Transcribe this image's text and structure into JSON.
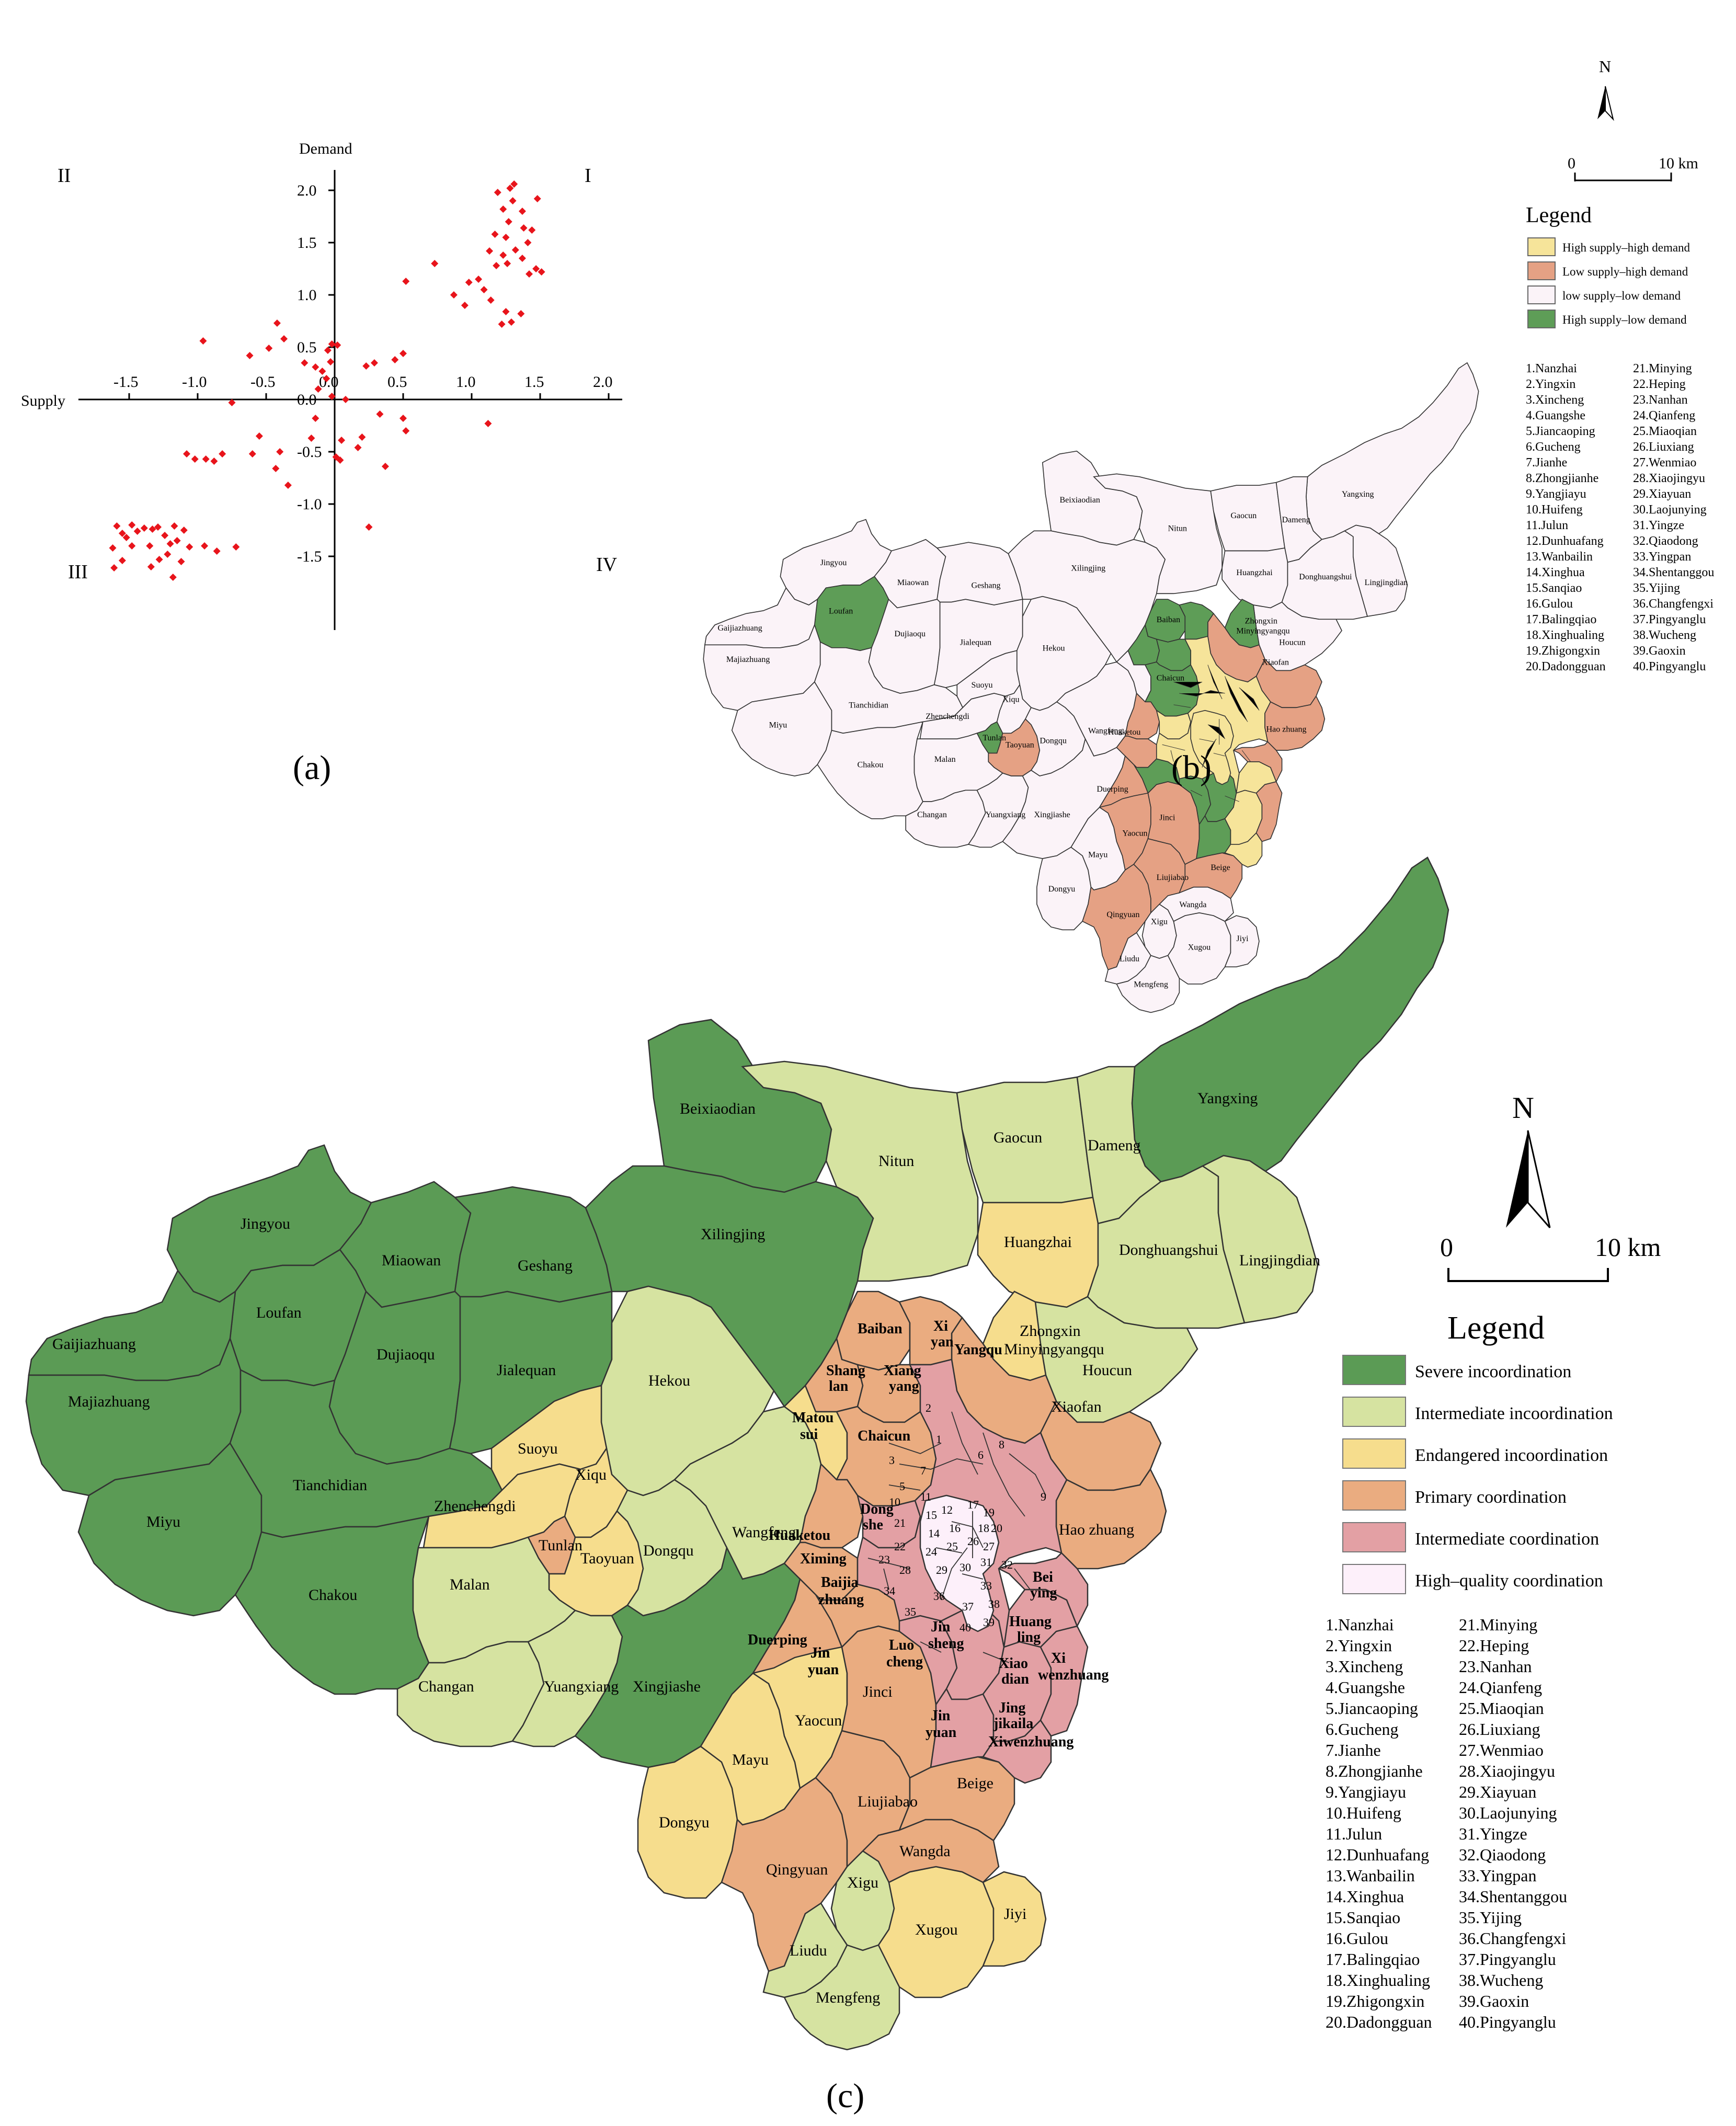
{
  "panels": {
    "a": "(a)",
    "b": "(b)",
    "c": "(c)"
  },
  "chart_data": {
    "type": "scatter",
    "xlabel": "Supply",
    "ylabel": "Demand",
    "xlim": [
      -1.8,
      2.1
    ],
    "ylim": [
      -1.9,
      2.3
    ],
    "xticks": [
      "-1.5",
      "-1.0",
      "-0.5",
      "0.0",
      "0.5",
      "1.0",
      "1.5",
      "2.0"
    ],
    "yticks": [
      "2.0",
      "1.5",
      "1.0",
      "0.5",
      "0.0",
      "-0.5",
      "-1.0",
      "-1.5"
    ],
    "quadrants": {
      "I": "I",
      "II": "II",
      "III": "III",
      "IV": "IV"
    },
    "points": [
      [
        1.28,
        2.02
      ],
      [
        1.31,
        2.06
      ],
      [
        1.48,
        1.92
      ],
      [
        1.19,
        1.98
      ],
      [
        1.3,
        1.9
      ],
      [
        1.37,
        1.8
      ],
      [
        1.23,
        1.82
      ],
      [
        1.27,
        1.7
      ],
      [
        1.38,
        1.64
      ],
      [
        1.44,
        1.62
      ],
      [
        1.17,
        1.58
      ],
      [
        1.25,
        1.55
      ],
      [
        1.41,
        1.5
      ],
      [
        1.32,
        1.43
      ],
      [
        1.13,
        1.42
      ],
      [
        1.23,
        1.38
      ],
      [
        1.37,
        1.35
      ],
      [
        1.26,
        1.3
      ],
      [
        1.18,
        1.28
      ],
      [
        1.47,
        1.25
      ],
      [
        1.51,
        1.22
      ],
      [
        1.42,
        1.2
      ],
      [
        1.05,
        1.15
      ],
      [
        0.98,
        1.12
      ],
      [
        1.09,
        1.05
      ],
      [
        0.87,
        1.0
      ],
      [
        1.14,
        0.95
      ],
      [
        0.95,
        0.9
      ],
      [
        1.25,
        0.84
      ],
      [
        1.36,
        0.82
      ],
      [
        1.22,
        0.72
      ],
      [
        1.29,
        0.74
      ],
      [
        0.73,
        1.3
      ],
      [
        0.52,
        1.13
      ],
      [
        0.5,
        0.44
      ],
      [
        0.44,
        0.38
      ],
      [
        0.29,
        0.35
      ],
      [
        0.23,
        0.32
      ],
      [
        -0.02,
        0.53
      ],
      [
        0.02,
        0.52
      ],
      [
        -0.05,
        0.47
      ],
      [
        -0.03,
        0.36
      ],
      [
        -0.09,
        0.27
      ],
      [
        -0.06,
        0.2
      ],
      [
        -0.22,
        0.35
      ],
      [
        -0.14,
        0.31
      ],
      [
        -0.12,
        0.1
      ],
      [
        -0.02,
        0.03
      ],
      [
        0.08,
        0.0
      ],
      [
        -0.42,
        0.73
      ],
      [
        -0.37,
        0.58
      ],
      [
        -0.48,
        0.49
      ],
      [
        -0.62,
        0.42
      ],
      [
        -0.96,
        0.56
      ],
      [
        -0.75,
        -0.03
      ],
      [
        -0.14,
        -0.18
      ],
      [
        -0.17,
        -0.37
      ],
      [
        0.05,
        -0.39
      ],
      [
        0.33,
        -0.14
      ],
      [
        0.5,
        -0.18
      ],
      [
        0.52,
        -0.3
      ],
      [
        0.2,
        -0.36
      ],
      [
        0.17,
        -0.46
      ],
      [
        0.01,
        -0.55
      ],
      [
        0.04,
        -0.58
      ],
      [
        0.37,
        -0.64
      ],
      [
        -0.55,
        -0.35
      ],
      [
        -0.4,
        -0.5
      ],
      [
        -0.6,
        -0.52
      ],
      [
        -0.82,
        -0.52
      ],
      [
        -0.94,
        -0.57
      ],
      [
        -1.08,
        -0.52
      ],
      [
        -1.02,
        -0.57
      ],
      [
        -0.88,
        -0.59
      ],
      [
        -0.43,
        -0.66
      ],
      [
        -0.34,
        -0.82
      ],
      [
        1.12,
        -0.23
      ],
      [
        0.25,
        -1.22
      ],
      [
        -1.59,
        -1.21
      ],
      [
        -1.48,
        -1.2
      ],
      [
        -1.39,
        -1.23
      ],
      [
        -1.33,
        -1.24
      ],
      [
        -1.29,
        -1.22
      ],
      [
        -1.17,
        -1.21
      ],
      [
        -1.1,
        -1.25
      ],
      [
        -1.55,
        -1.28
      ],
      [
        -1.44,
        -1.26
      ],
      [
        -1.52,
        -1.32
      ],
      [
        -1.24,
        -1.3
      ],
      [
        -1.15,
        -1.35
      ],
      [
        -1.62,
        -1.42
      ],
      [
        -1.48,
        -1.4
      ],
      [
        -1.35,
        -1.4
      ],
      [
        -1.2,
        -1.38
      ],
      [
        -1.06,
        -1.41
      ],
      [
        -0.95,
        -1.4
      ],
      [
        -1.22,
        -1.48
      ],
      [
        -1.28,
        -1.53
      ],
      [
        -1.55,
        -1.54
      ],
      [
        -1.61,
        -1.61
      ],
      [
        -1.34,
        -1.6
      ],
      [
        -1.12,
        -1.55
      ],
      [
        -1.18,
        -1.7
      ],
      [
        -0.86,
        -1.45
      ],
      [
        -0.72,
        -1.41
      ]
    ]
  },
  "map_b": {
    "north": "N",
    "scale_0": "0",
    "scale_10": "10 km",
    "legend_title": "Legend",
    "legend": [
      {
        "label": "High supply–high demand",
        "color": "#f6e49a"
      },
      {
        "label": "Low supply–high demand",
        "color": "#e5a184"
      },
      {
        "label": "low supply–low demand",
        "color": "#fbf3f8"
      },
      {
        "label": "High supply–low demand",
        "color": "#5e9d57"
      }
    ]
  },
  "map_c": {
    "north": "N",
    "scale_0": "0",
    "scale_10": "10 km",
    "legend_title": "Legend",
    "legend": [
      {
        "label": "Severe incoordination",
        "color": "#5b9b55"
      },
      {
        "label": "Intermediate incoordination",
        "color": "#d6e3a1"
      },
      {
        "label": "Endangered incoordination",
        "color": "#f6dd8d"
      },
      {
        "label": "Primary coordination",
        "color": "#eaac80"
      },
      {
        "label": "Intermediate coordination",
        "color": "#e3a0a4"
      },
      {
        "label": "High–quality coordination",
        "color": "#fdf0fa"
      }
    ]
  },
  "index_list": [
    "1.Nanzhai",
    "2.Yingxin",
    "3.Xincheng",
    "4.Guangshe",
    "5.Jiancaoping",
    "6.Gucheng",
    "7.Jianhe",
    "8.Zhongjianhe",
    "9.Yangjiayu",
    "10.Huifeng",
    "11.Julun",
    "12.Dunhuafang",
    "13.Wanbailin",
    "14.Xinghua",
    "15.Sanqiao",
    "16.Gulou",
    "17.Balingqiao",
    "18.Xinghualing",
    "19.Zhigongxin",
    "20.Dadongguan",
    "21.Minying",
    "22.Heping",
    "23.Nanhan",
    "24.Qianfeng",
    "25.Miaoqian",
    "26.Liuxiang",
    "27.Wenmiao",
    "28.Xiaojingyu",
    "29.Xiayuan",
    "30.Laojunying",
    "31.Yingze",
    "32.Qiaodong",
    "33.Yingpan",
    "34.Shentanggou",
    "35.Yijing",
    "36.Changfengxi",
    "37.Pingyanglu",
    "38.Wucheng",
    "39.Gaoxin",
    "40.Pingyanglu"
  ],
  "regions": [
    {
      "name": "Yangxing",
      "b": "#fbf3f8",
      "c": "#5b9b55"
    },
    {
      "name": "Beixiaodian",
      "b": "#fbf3f8",
      "c": "#5b9b55"
    },
    {
      "name": "Nitun",
      "b": "#fbf3f8",
      "c": "#d6e3a1"
    },
    {
      "name": "Gaocun",
      "b": "#fbf3f8",
      "c": "#d6e3a1"
    },
    {
      "name": "Dameng",
      "b": "#fbf3f8",
      "c": "#d6e3a1"
    },
    {
      "name": "Huangzhai",
      "b": "#fbf3f8",
      "c": "#f6dd8d"
    },
    {
      "name": "Donghuangshui",
      "b": "#fbf3f8",
      "c": "#d6e3a1"
    },
    {
      "name": "Lingjingdian",
      "b": "#fbf3f8",
      "c": "#d6e3a1"
    },
    {
      "name": "Jingyou",
      "b": "#fbf3f8",
      "c": "#5b9b55"
    },
    {
      "name": "Miaowan",
      "b": "#fbf3f8",
      "c": "#5b9b55"
    },
    {
      "name": "Geshang",
      "b": "#fbf3f8",
      "c": "#5b9b55"
    },
    {
      "name": "Xilingjing",
      "b": "#fbf3f8",
      "c": "#5b9b55"
    },
    {
      "name": "Loufan",
      "b": "#5e9d57",
      "c": "#5b9b55"
    },
    {
      "name": "Gaijiazhuang",
      "b": "#fbf3f8",
      "c": "#5b9b55"
    },
    {
      "name": "Majiazhuang",
      "b": "#fbf3f8",
      "c": "#5b9b55"
    },
    {
      "name": "Dujiaoqu",
      "b": "#fbf3f8",
      "c": "#5b9b55"
    },
    {
      "name": "Jialequan",
      "b": "#fbf3f8",
      "c": "#5b9b55"
    },
    {
      "name": "Miyu",
      "b": "#fbf3f8",
      "c": "#5b9b55"
    },
    {
      "name": "Tianchidian",
      "b": "#fbf3f8",
      "c": "#5b9b55"
    },
    {
      "name": "Chakou",
      "b": "#fbf3f8",
      "c": "#5b9b55"
    },
    {
      "name": "Hekou",
      "b": "#fbf3f8",
      "c": "#d6e3a1"
    },
    {
      "name": "Suoyu",
      "b": "#fbf3f8",
      "c": "#f6dd8d"
    },
    {
      "name": "Xiqu",
      "b": "#fbf3f8",
      "c": "#f6dd8d"
    },
    {
      "name": "Zhenchengdi",
      "b": "#fbf3f8",
      "c": "#f6dd8d"
    },
    {
      "name": "Tunlan",
      "b": "#5e9d57",
      "c": "#eaac80"
    },
    {
      "name": "Taoyuan",
      "b": "#e5a184",
      "c": "#f6dd8d"
    },
    {
      "name": "Malan",
      "b": "#fbf3f8",
      "c": "#d6e3a1"
    },
    {
      "name": "Dongqu",
      "b": "#fbf3f8",
      "c": "#d6e3a1"
    },
    {
      "name": "Wangfeng",
      "b": "#fbf3f8",
      "c": "#d6e3a1"
    },
    {
      "name": "Changan",
      "b": "#fbf3f8",
      "c": "#d6e3a1"
    },
    {
      "name": "Yuangxiang",
      "b": "#fbf3f8",
      "c": "#d6e3a1"
    },
    {
      "name": "Xingjiashe",
      "b": "#fbf3f8",
      "c": "#5b9b55"
    },
    {
      "name": "Dongyu",
      "b": "#fbf3f8",
      "c": "#f6dd8d"
    },
    {
      "name": "Mayu",
      "b": "#fbf3f8",
      "c": "#f6dd8d"
    },
    {
      "name": "Yaocun",
      "b": "#e5a184",
      "c": "#f6dd8d"
    },
    {
      "name": "Qingyuan",
      "b": "#e5a184",
      "c": "#eaac80"
    },
    {
      "name": "Xigu",
      "b": "#fbf3f8",
      "c": "#d6e3a1"
    },
    {
      "name": "Liudu",
      "b": "#fbf3f8",
      "c": "#d6e3a1"
    },
    {
      "name": "Mengfeng",
      "b": "#fbf3f8",
      "c": "#d6e3a1"
    },
    {
      "name": "Xugou",
      "b": "#fbf3f8",
      "c": "#f6dd8d"
    },
    {
      "name": "Jiyi",
      "b": "#fbf3f8",
      "c": "#f6dd8d"
    },
    {
      "name": "Wangda",
      "b": "#fbf3f8",
      "c": "#eaac80"
    },
    {
      "name": "Liujiabao",
      "b": "#e5a184",
      "c": "#eaac80"
    },
    {
      "name": "Beige",
      "b": "#e5a184",
      "c": "#eaac80"
    },
    {
      "name": "Jinci",
      "b": "#e5a184",
      "c": "#eaac80"
    },
    {
      "name": "Houcun",
      "b": "#fbf3f8",
      "c": "#d6e3a1"
    },
    {
      "name": "Xiaofan",
      "b": "#e5a184",
      "c": "#eaac80"
    },
    {
      "name": "Hao zhuang",
      "b": "#e5a184",
      "c": "#eaac80"
    },
    {
      "name": "Minyingyangqu",
      "b": "#5e9d57",
      "c": "#f6dd8d"
    },
    {
      "name": "Zhongxin",
      "b": "#5e9d57",
      "c": "#f6dd8d"
    },
    {
      "name": "Baiban",
      "b": "#5e9d57",
      "c": "#eaac80"
    },
    {
      "name": "Xi yan",
      "b": "#5e9d57",
      "c": "#eaac80"
    },
    {
      "name": "Yangqu",
      "b": "#e5a184",
      "c": "#eaac80"
    },
    {
      "name": "Shang lan",
      "b": "#5e9d57",
      "c": "#eaac80"
    },
    {
      "name": "Xiang yang",
      "b": "#5e9d57",
      "c": "#eaac80"
    },
    {
      "name": "Matou sui",
      "b": "#fbf3f8",
      "c": "#f6dd8d"
    },
    {
      "name": "Chaicun",
      "b": "#5e9d57",
      "c": "#eaac80"
    },
    {
      "name": "Huaketou",
      "b": "#e5a184",
      "c": "#eaac80"
    },
    {
      "name": "Ximing",
      "b": "#e5a184",
      "c": "#eaac80"
    },
    {
      "name": "Dong she",
      "b": "#f6e49a",
      "c": "#e3a0a4"
    },
    {
      "name": "Baijia zhuang",
      "b": "#5e9d57",
      "c": "#eaac80"
    },
    {
      "name": "Duerping",
      "b": "#e5a184",
      "c": "#eaac80"
    },
    {
      "name": "Jin yuan",
      "b": "#5e9d57",
      "c": "#eaac80"
    },
    {
      "name": "Luo cheng",
      "b": "#5e9d57",
      "c": "#e3a0a4"
    },
    {
      "name": "Jin sheng",
      "b": "#5e9d57",
      "c": "#e3a0a4"
    },
    {
      "name": "Jin yuan",
      "b": "#5e9d57",
      "c": "#eaac80"
    },
    {
      "name": "Xiao dian",
      "b": "#f6e49a",
      "c": "#e3a0a4"
    },
    {
      "name": "Bei ying",
      "b": "#e5a184",
      "c": "#e3a0a4"
    },
    {
      "name": "Huang ling",
      "b": "#f6e49a",
      "c": "#e3a0a4"
    },
    {
      "name": "Xi wenzhuang",
      "b": "#e5a184",
      "c": "#e3a0a4"
    },
    {
      "name": "Jing jikaila",
      "b": "#f6e49a",
      "c": "#e3a0a4"
    },
    {
      "name": "Xiwenzhuang",
      "b": "#e5a184",
      "c": "#e3a0a4"
    }
  ]
}
